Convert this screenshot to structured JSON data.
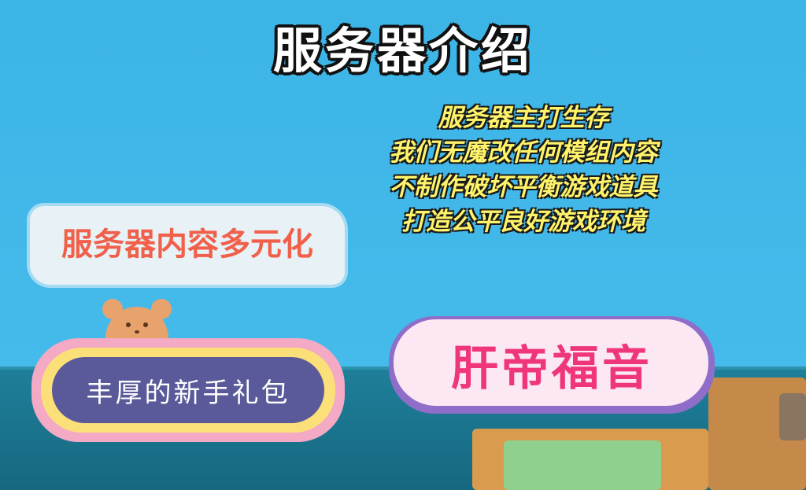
{
  "title": "服务器介绍",
  "intro_lines": [
    "服务器主打生存",
    "我们无魔改任何模组内容",
    "不制作破坏平衡游戏道具",
    "打造公平良好游戏环境"
  ],
  "badges": {
    "diverse": "服务器内容多元化",
    "gift": "丰厚的新手礼包",
    "gospel": "肝帝福音"
  },
  "colors": {
    "sky": "#3cb4e6",
    "title": "#ffffff",
    "intro": "#fff36a",
    "diverse": "#f0604a",
    "gospel": "#f0367a"
  }
}
